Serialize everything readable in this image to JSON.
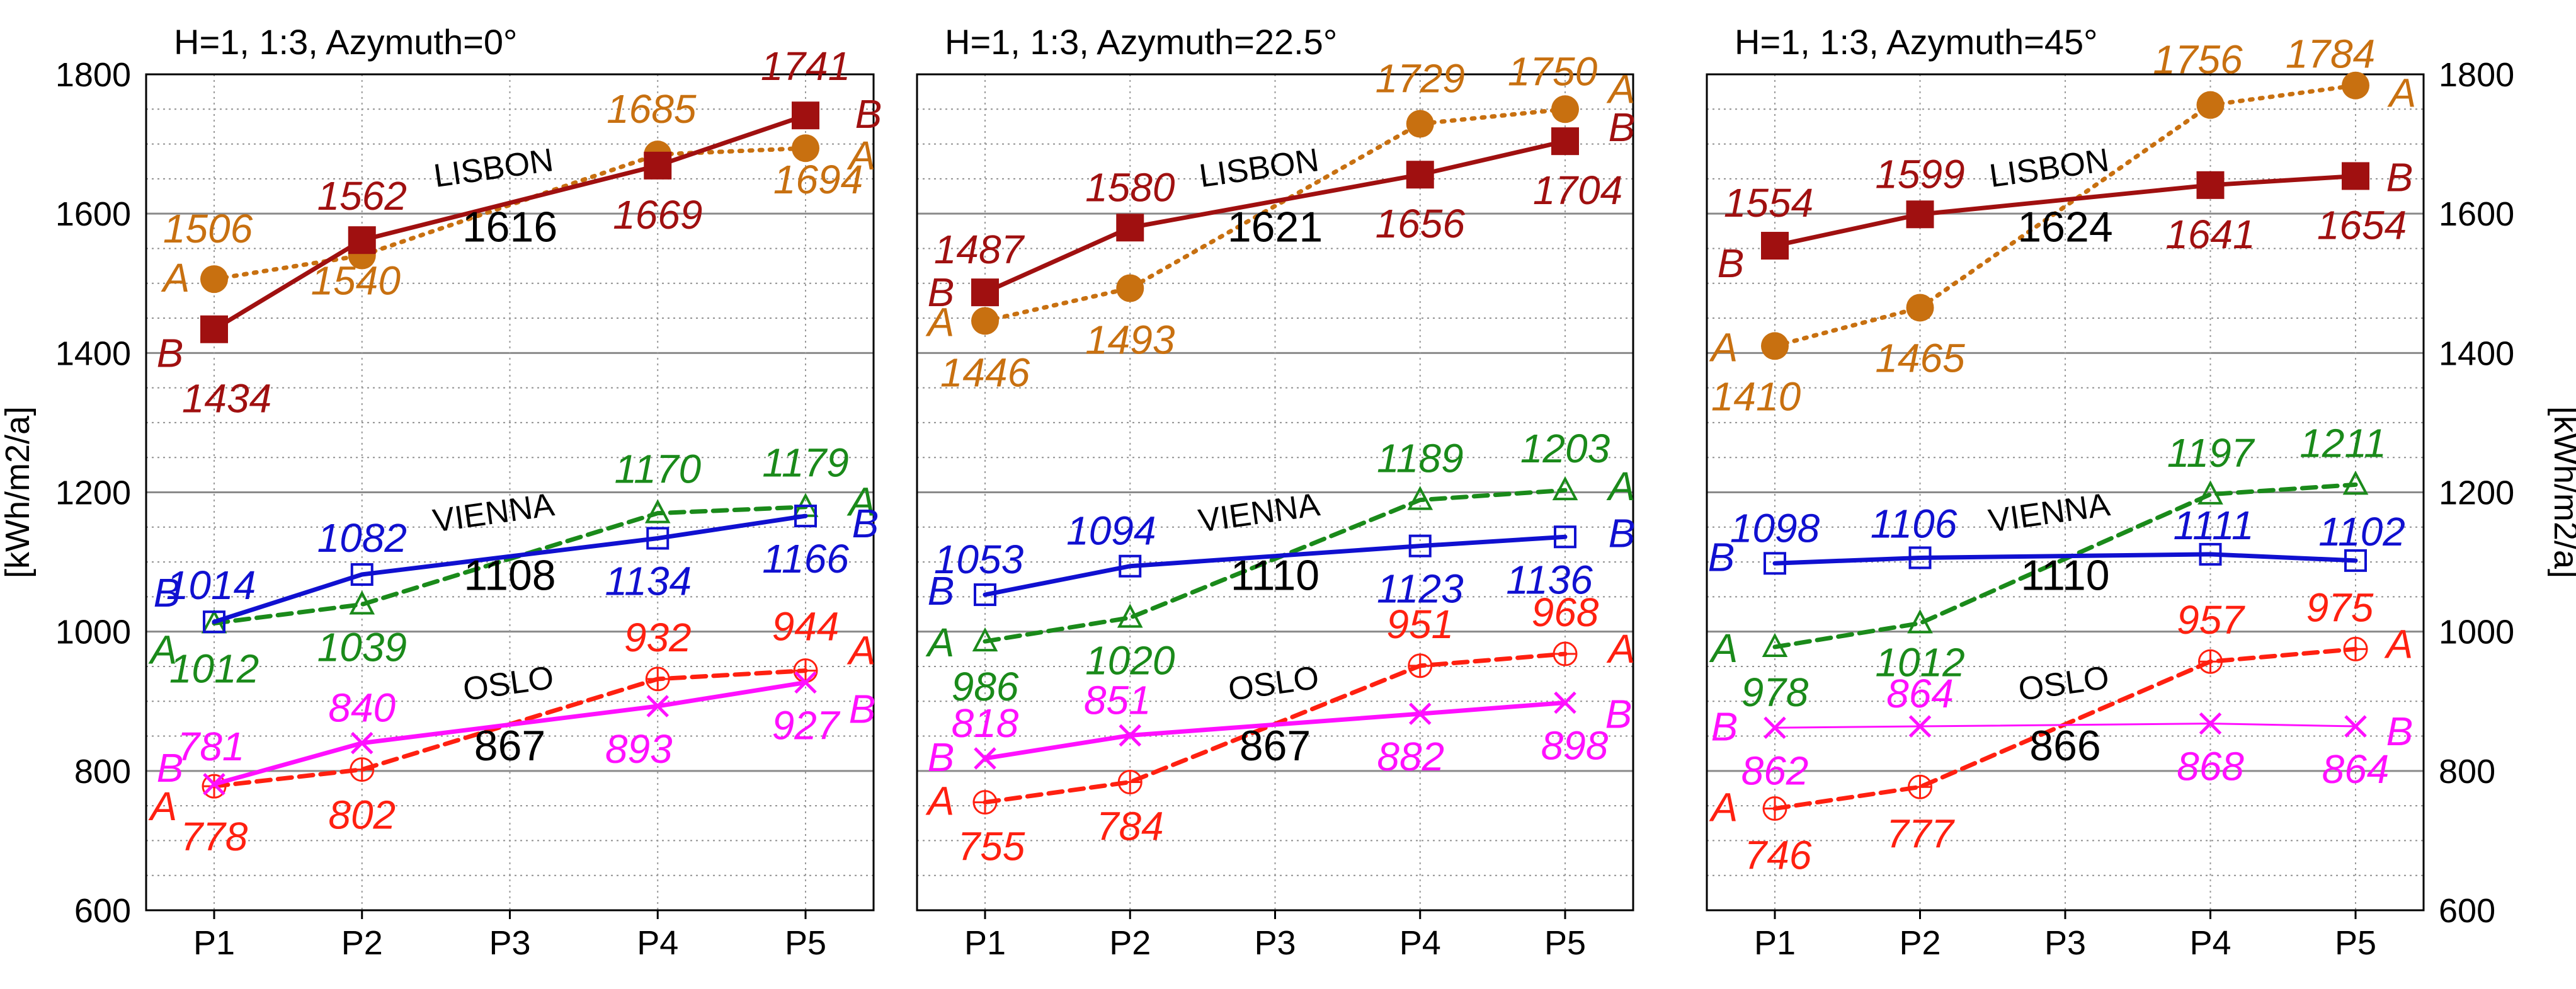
{
  "y_axis_label": "[kWh/m2/a]",
  "y_ticks": [
    600,
    800,
    1000,
    1200,
    1400,
    1600,
    1800
  ],
  "chart_data": [
    {
      "type": "line",
      "title": "H=1, 1:3, Azymuth=0°",
      "categories": [
        "P1",
        "P2",
        "P3",
        "P4",
        "P5"
      ],
      "ylim": [
        600,
        1800
      ],
      "grid": true,
      "groups": [
        {
          "city": "LISBON",
          "average": 1616,
          "series": [
            {
              "name": "A",
              "color": "#c87010",
              "values": [
                1506,
                1540,
                null,
                1685,
                1694
              ]
            },
            {
              "name": "B",
              "color": "#a01010",
              "values": [
                1434,
                1562,
                null,
                1669,
                1741
              ]
            }
          ]
        },
        {
          "city": "VIENNA",
          "average": 1108,
          "series": [
            {
              "name": "A",
              "color": "#1a8a1a",
              "values": [
                1012,
                1039,
                null,
                1170,
                1179
              ]
            },
            {
              "name": "B",
              "color": "#1010d0",
              "values": [
                1014,
                1082,
                null,
                1134,
                1166
              ]
            }
          ]
        },
        {
          "city": "OSLO",
          "average": 867,
          "series": [
            {
              "name": "A",
              "color": "#ff2010",
              "values": [
                778,
                802,
                null,
                932,
                944
              ]
            },
            {
              "name": "B",
              "color": "#ff10ff",
              "values": [
                781,
                840,
                null,
                893,
                927
              ]
            }
          ]
        }
      ]
    },
    {
      "type": "line",
      "title": "H=1, 1:3, Azymuth=22.5°",
      "categories": [
        "P1",
        "P2",
        "P3",
        "P4",
        "P5"
      ],
      "ylim": [
        600,
        1800
      ],
      "grid": true,
      "groups": [
        {
          "city": "LISBON",
          "average": 1621,
          "series": [
            {
              "name": "A",
              "color": "#c87010",
              "values": [
                1446,
                1493,
                null,
                1729,
                1750
              ]
            },
            {
              "name": "B",
              "color": "#a01010",
              "values": [
                1487,
                1580,
                null,
                1656,
                1704
              ]
            }
          ]
        },
        {
          "city": "VIENNA",
          "average": 1110,
          "series": [
            {
              "name": "A",
              "color": "#1a8a1a",
              "values": [
                986,
                1020,
                null,
                1189,
                1203
              ]
            },
            {
              "name": "B",
              "color": "#1010d0",
              "values": [
                1053,
                1094,
                null,
                1123,
                1136
              ]
            }
          ]
        },
        {
          "city": "OSLO",
          "average": 867,
          "series": [
            {
              "name": "A",
              "color": "#ff2010",
              "values": [
                755,
                784,
                null,
                951,
                968
              ]
            },
            {
              "name": "B",
              "color": "#ff10ff",
              "values": [
                818,
                851,
                null,
                882,
                898
              ]
            }
          ]
        }
      ]
    },
    {
      "type": "line",
      "title": "H=1, 1:3, Azymuth=45°",
      "categories": [
        "P1",
        "P2",
        "P3",
        "P4",
        "P5"
      ],
      "ylim": [
        600,
        1800
      ],
      "grid": true,
      "groups": [
        {
          "city": "LISBON",
          "average": 1624,
          "series": [
            {
              "name": "A",
              "color": "#c87010",
              "values": [
                1410,
                1465,
                null,
                1756,
                1784
              ]
            },
            {
              "name": "B",
              "color": "#a01010",
              "values": [
                1554,
                1599,
                null,
                1641,
                1654
              ]
            }
          ]
        },
        {
          "city": "VIENNA",
          "average": 1110,
          "series": [
            {
              "name": "A",
              "color": "#1a8a1a",
              "values": [
                978,
                1012,
                null,
                1197,
                1211
              ]
            },
            {
              "name": "B",
              "color": "#1010d0",
              "values": [
                1098,
                1106,
                null,
                1111,
                1102
              ]
            }
          ]
        },
        {
          "city": "OSLO",
          "average": 866,
          "series": [
            {
              "name": "A",
              "color": "#ff2010",
              "values": [
                746,
                777,
                null,
                957,
                975
              ]
            },
            {
              "name": "B",
              "color": "#ff10ff",
              "values": [
                862,
                864,
                null,
                868,
                864
              ]
            }
          ]
        }
      ]
    }
  ]
}
